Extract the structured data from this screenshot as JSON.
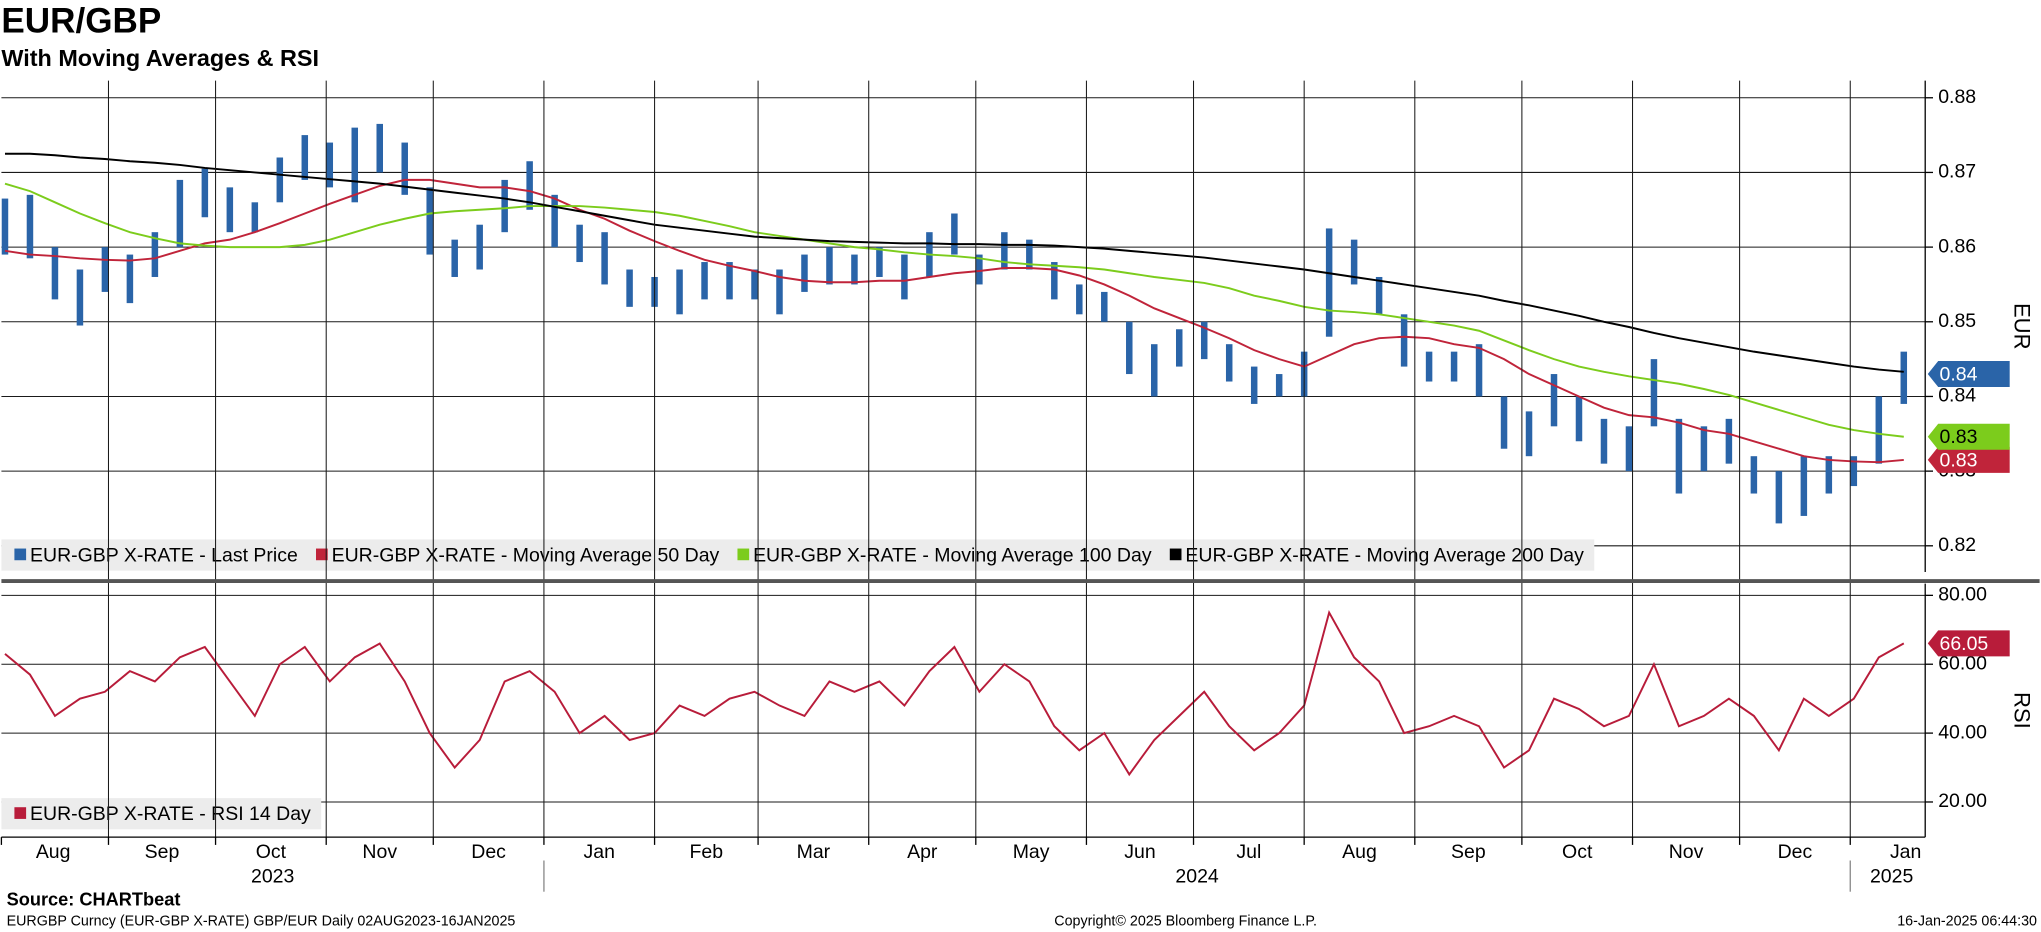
{
  "chart_data": [
    {
      "type": "hilo",
      "title": "EUR/GBP",
      "subtitle": "With Moving Averages & RSI",
      "y_label": "EUR",
      "x": [
        "2023-08-03",
        "2023-08-10",
        "2023-08-17",
        "2023-08-24",
        "2023-08-31",
        "2023-09-07",
        "2023-09-14",
        "2023-09-21",
        "2023-09-28",
        "2023-10-05",
        "2023-10-12",
        "2023-10-19",
        "2023-10-26",
        "2023-11-02",
        "2023-11-09",
        "2023-11-16",
        "2023-11-23",
        "2023-11-30",
        "2023-12-07",
        "2023-12-14",
        "2023-12-21",
        "2023-12-28",
        "2024-01-04",
        "2024-01-11",
        "2024-01-18",
        "2024-01-25",
        "2024-02-01",
        "2024-02-08",
        "2024-02-15",
        "2024-02-22",
        "2024-02-29",
        "2024-03-07",
        "2024-03-14",
        "2024-03-21",
        "2024-03-28",
        "2024-04-04",
        "2024-04-11",
        "2024-04-18",
        "2024-04-25",
        "2024-05-02",
        "2024-05-09",
        "2024-05-16",
        "2024-05-23",
        "2024-05-30",
        "2024-06-06",
        "2024-06-13",
        "2024-06-20",
        "2024-06-27",
        "2024-07-04",
        "2024-07-11",
        "2024-07-18",
        "2024-07-25",
        "2024-08-01",
        "2024-08-08",
        "2024-08-15",
        "2024-08-22",
        "2024-08-29",
        "2024-09-05",
        "2024-09-12",
        "2024-09-19",
        "2024-09-26",
        "2024-10-03",
        "2024-10-10",
        "2024-10-17",
        "2024-10-24",
        "2024-10-31",
        "2024-11-07",
        "2024-11-14",
        "2024-11-21",
        "2024-11-28",
        "2024-12-05",
        "2024-12-12",
        "2024-12-19",
        "2024-12-26",
        "2025-01-02",
        "2025-01-09",
        "2025-01-16"
      ],
      "series": [
        {
          "name": "EUR-GBP X-RATE - Last Price",
          "color": "#2a64a8",
          "tag_text_color": "#ffffff",
          "high": [
            0.8665,
            0.867,
            0.86,
            0.857,
            0.86,
            0.859,
            0.862,
            0.869,
            0.8705,
            0.868,
            0.866,
            0.872,
            0.875,
            0.874,
            0.876,
            0.8765,
            0.874,
            0.868,
            0.861,
            0.863,
            0.869,
            0.8715,
            0.867,
            0.863,
            0.862,
            0.857,
            0.856,
            0.857,
            0.858,
            0.858,
            0.857,
            0.857,
            0.859,
            0.86,
            0.859,
            0.86,
            0.859,
            0.862,
            0.8645,
            0.859,
            0.862,
            0.861,
            0.858,
            0.855,
            0.854,
            0.85,
            0.847,
            0.849,
            0.85,
            0.847,
            0.844,
            0.843,
            0.846,
            0.8625,
            0.861,
            0.856,
            0.851,
            0.846,
            0.846,
            0.847,
            0.84,
            0.838,
            0.843,
            0.84,
            0.837,
            0.836,
            0.845,
            0.837,
            0.836,
            0.837,
            0.832,
            0.83,
            0.832,
            0.832,
            0.832,
            0.84,
            0.846
          ],
          "low": [
            0.859,
            0.8585,
            0.853,
            0.8495,
            0.854,
            0.8525,
            0.856,
            0.86,
            0.864,
            0.862,
            0.862,
            0.866,
            0.869,
            0.868,
            0.866,
            0.87,
            0.867,
            0.859,
            0.856,
            0.857,
            0.862,
            0.865,
            0.86,
            0.858,
            0.855,
            0.852,
            0.852,
            0.851,
            0.853,
            0.853,
            0.853,
            0.851,
            0.854,
            0.855,
            0.855,
            0.856,
            0.853,
            0.856,
            0.859,
            0.855,
            0.857,
            0.857,
            0.853,
            0.851,
            0.85,
            0.843,
            0.84,
            0.844,
            0.845,
            0.842,
            0.839,
            0.84,
            0.84,
            0.848,
            0.855,
            0.851,
            0.844,
            0.842,
            0.842,
            0.84,
            0.833,
            0.832,
            0.836,
            0.834,
            0.831,
            0.83,
            0.836,
            0.827,
            0.83,
            0.831,
            0.827,
            0.823,
            0.824,
            0.827,
            0.828,
            0.831,
            0.839
          ],
          "last": 0.843,
          "last_label": "0.84"
        },
        {
          "name": "EUR-GBP X-RATE - Moving Average 50 Day",
          "color": "#c0243a",
          "tag_text_color": "#ffffff",
          "values": [
            0.8595,
            0.859,
            0.8588,
            0.8585,
            0.8583,
            0.8582,
            0.8585,
            0.8595,
            0.8605,
            0.861,
            0.862,
            0.8632,
            0.8645,
            0.8658,
            0.867,
            0.8682,
            0.869,
            0.869,
            0.8685,
            0.868,
            0.868,
            0.8675,
            0.8665,
            0.865,
            0.8638,
            0.8622,
            0.8608,
            0.8595,
            0.8583,
            0.8575,
            0.8568,
            0.856,
            0.8555,
            0.8553,
            0.8553,
            0.8555,
            0.8555,
            0.856,
            0.8565,
            0.8568,
            0.8572,
            0.8572,
            0.857,
            0.8562,
            0.855,
            0.8535,
            0.8518,
            0.8505,
            0.8492,
            0.8478,
            0.8462,
            0.845,
            0.844,
            0.8455,
            0.847,
            0.8478,
            0.848,
            0.8478,
            0.847,
            0.8465,
            0.845,
            0.843,
            0.8415,
            0.84,
            0.8385,
            0.8375,
            0.8372,
            0.8365,
            0.8355,
            0.835,
            0.834,
            0.833,
            0.832,
            0.8315,
            0.8313,
            0.8312,
            0.8315
          ],
          "last_label": "0.83"
        },
        {
          "name": "EUR-GBP X-RATE - Moving Average 100 Day",
          "color": "#7ccc1c",
          "tag_text_color": "#000000",
          "values": [
            0.8685,
            0.8675,
            0.866,
            0.8645,
            0.8632,
            0.862,
            0.8612,
            0.8605,
            0.8602,
            0.86,
            0.86,
            0.86,
            0.8603,
            0.861,
            0.862,
            0.863,
            0.8638,
            0.8645,
            0.8648,
            0.865,
            0.8652,
            0.8655,
            0.8655,
            0.8655,
            0.8653,
            0.865,
            0.8647,
            0.8642,
            0.8635,
            0.8628,
            0.862,
            0.8615,
            0.861,
            0.8605,
            0.86,
            0.8597,
            0.8593,
            0.859,
            0.8588,
            0.8585,
            0.858,
            0.8577,
            0.8575,
            0.8573,
            0.857,
            0.8565,
            0.856,
            0.8556,
            0.8552,
            0.8545,
            0.8535,
            0.8528,
            0.852,
            0.8515,
            0.8513,
            0.851,
            0.8505,
            0.85,
            0.8495,
            0.8488,
            0.8475,
            0.8462,
            0.845,
            0.844,
            0.8433,
            0.8427,
            0.8422,
            0.8417,
            0.841,
            0.8402,
            0.8392,
            0.8382,
            0.8372,
            0.8362,
            0.8355,
            0.835,
            0.8346
          ],
          "last_label": "0.83"
        },
        {
          "name": "EUR-GBP X-RATE - Moving Average 200 Day",
          "color": "#000000",
          "values": [
            0.8725,
            0.8725,
            0.8723,
            0.872,
            0.8718,
            0.8715,
            0.8713,
            0.871,
            0.8706,
            0.8703,
            0.87,
            0.8697,
            0.8694,
            0.8691,
            0.8688,
            0.8685,
            0.8681,
            0.8677,
            0.8673,
            0.8669,
            0.8665,
            0.866,
            0.8654,
            0.8648,
            0.8642,
            0.8636,
            0.863,
            0.8626,
            0.8622,
            0.8618,
            0.8614,
            0.8612,
            0.861,
            0.8608,
            0.8607,
            0.8606,
            0.8605,
            0.8605,
            0.8604,
            0.8604,
            0.8603,
            0.8603,
            0.8602,
            0.86,
            0.8598,
            0.8595,
            0.8592,
            0.8589,
            0.8586,
            0.8582,
            0.8578,
            0.8574,
            0.857,
            0.8565,
            0.856,
            0.8555,
            0.855,
            0.8545,
            0.854,
            0.8535,
            0.8528,
            0.8522,
            0.8515,
            0.8508,
            0.85,
            0.8493,
            0.8485,
            0.8478,
            0.8472,
            0.8466,
            0.846,
            0.8455,
            0.845,
            0.8445,
            0.844,
            0.8436,
            0.8433
          ]
        }
      ],
      "xlim": [
        "2023-08-02",
        "2025-01-22"
      ],
      "ylim": [
        0.8165,
        0.8823
      ],
      "yticks": [
        0.82,
        0.83,
        0.84,
        0.85,
        0.86,
        0.87,
        0.88
      ],
      "grid": true
    },
    {
      "type": "line",
      "y_label": "RSI",
      "x_ref": "chart_data.0.x",
      "series": [
        {
          "name": "EUR-GBP X-RATE - RSI 14 Day",
          "color": "#b81c3a",
          "values": [
            63,
            57,
            45,
            50,
            52,
            58,
            55,
            62,
            65,
            55,
            45,
            60,
            65,
            55,
            62,
            66,
            55,
            40,
            30,
            38,
            55,
            58,
            52,
            40,
            45,
            38,
            40,
            48,
            45,
            50,
            52,
            48,
            45,
            55,
            52,
            55,
            48,
            58,
            65,
            52,
            60,
            55,
            42,
            35,
            40,
            28,
            38,
            45,
            52,
            42,
            35,
            40,
            48,
            75,
            62,
            55,
            40,
            42,
            45,
            42,
            30,
            35,
            50,
            47,
            42,
            45,
            60,
            42,
            45,
            50,
            45,
            35,
            50,
            45,
            50,
            62,
            66.05
          ]
        }
      ],
      "xlim": [
        "2023-08-02",
        "2025-01-22"
      ],
      "ylim": [
        9.8,
        83.4
      ],
      "yticks": [
        {
          "value": 20,
          "label": "20.00"
        },
        {
          "value": 40,
          "label": "40.00"
        },
        {
          "value": 60,
          "label": "60.00"
        },
        {
          "value": 80,
          "label": "80.00"
        }
      ],
      "xticks": [
        {
          "value": "2023-08-01",
          "label": "Aug"
        },
        {
          "value": "2023-09-01",
          "label": "Sep"
        },
        {
          "value": "2023-10-01",
          "label": "Oct"
        },
        {
          "value": "2023-11-01",
          "label": "Nov"
        },
        {
          "value": "2023-12-01",
          "label": "Dec"
        },
        {
          "value": "2024-01-01",
          "label": "Jan"
        },
        {
          "value": "2024-02-01",
          "label": "Feb"
        },
        {
          "value": "2024-03-01",
          "label": "Mar"
        },
        {
          "value": "2024-04-01",
          "label": "Apr"
        },
        {
          "value": "2024-05-01",
          "label": "May"
        },
        {
          "value": "2024-06-01",
          "label": "Jun"
        },
        {
          "value": "2024-07-01",
          "label": "Jul"
        },
        {
          "value": "2024-08-01",
          "label": "Aug"
        },
        {
          "value": "2024-09-01",
          "label": "Sep"
        },
        {
          "value": "2024-10-01",
          "label": "Oct"
        },
        {
          "value": "2024-11-01",
          "label": "Nov"
        },
        {
          "value": "2024-12-01",
          "label": "Dec"
        },
        {
          "value": "2025-01-01",
          "label": "Jan"
        }
      ],
      "year_ticks": [
        {
          "value": "2023-01-01",
          "label": "2023"
        },
        {
          "value": "2024-01-01",
          "label": "2024"
        },
        {
          "value": "2025-01-01",
          "label": "2025"
        }
      ],
      "grid": true
    }
  ],
  "footer": {
    "source": "Source: CHARTbeat",
    "description": "EURGBP Curncy (EUR-GBP X-RATE) GBP/EUR  Daily 02AUG2023-16JAN2025",
    "copyright": "Copyright© 2025 Bloomberg Finance L.P.",
    "timestamp": "16-Jan-2025 06:44:30"
  }
}
